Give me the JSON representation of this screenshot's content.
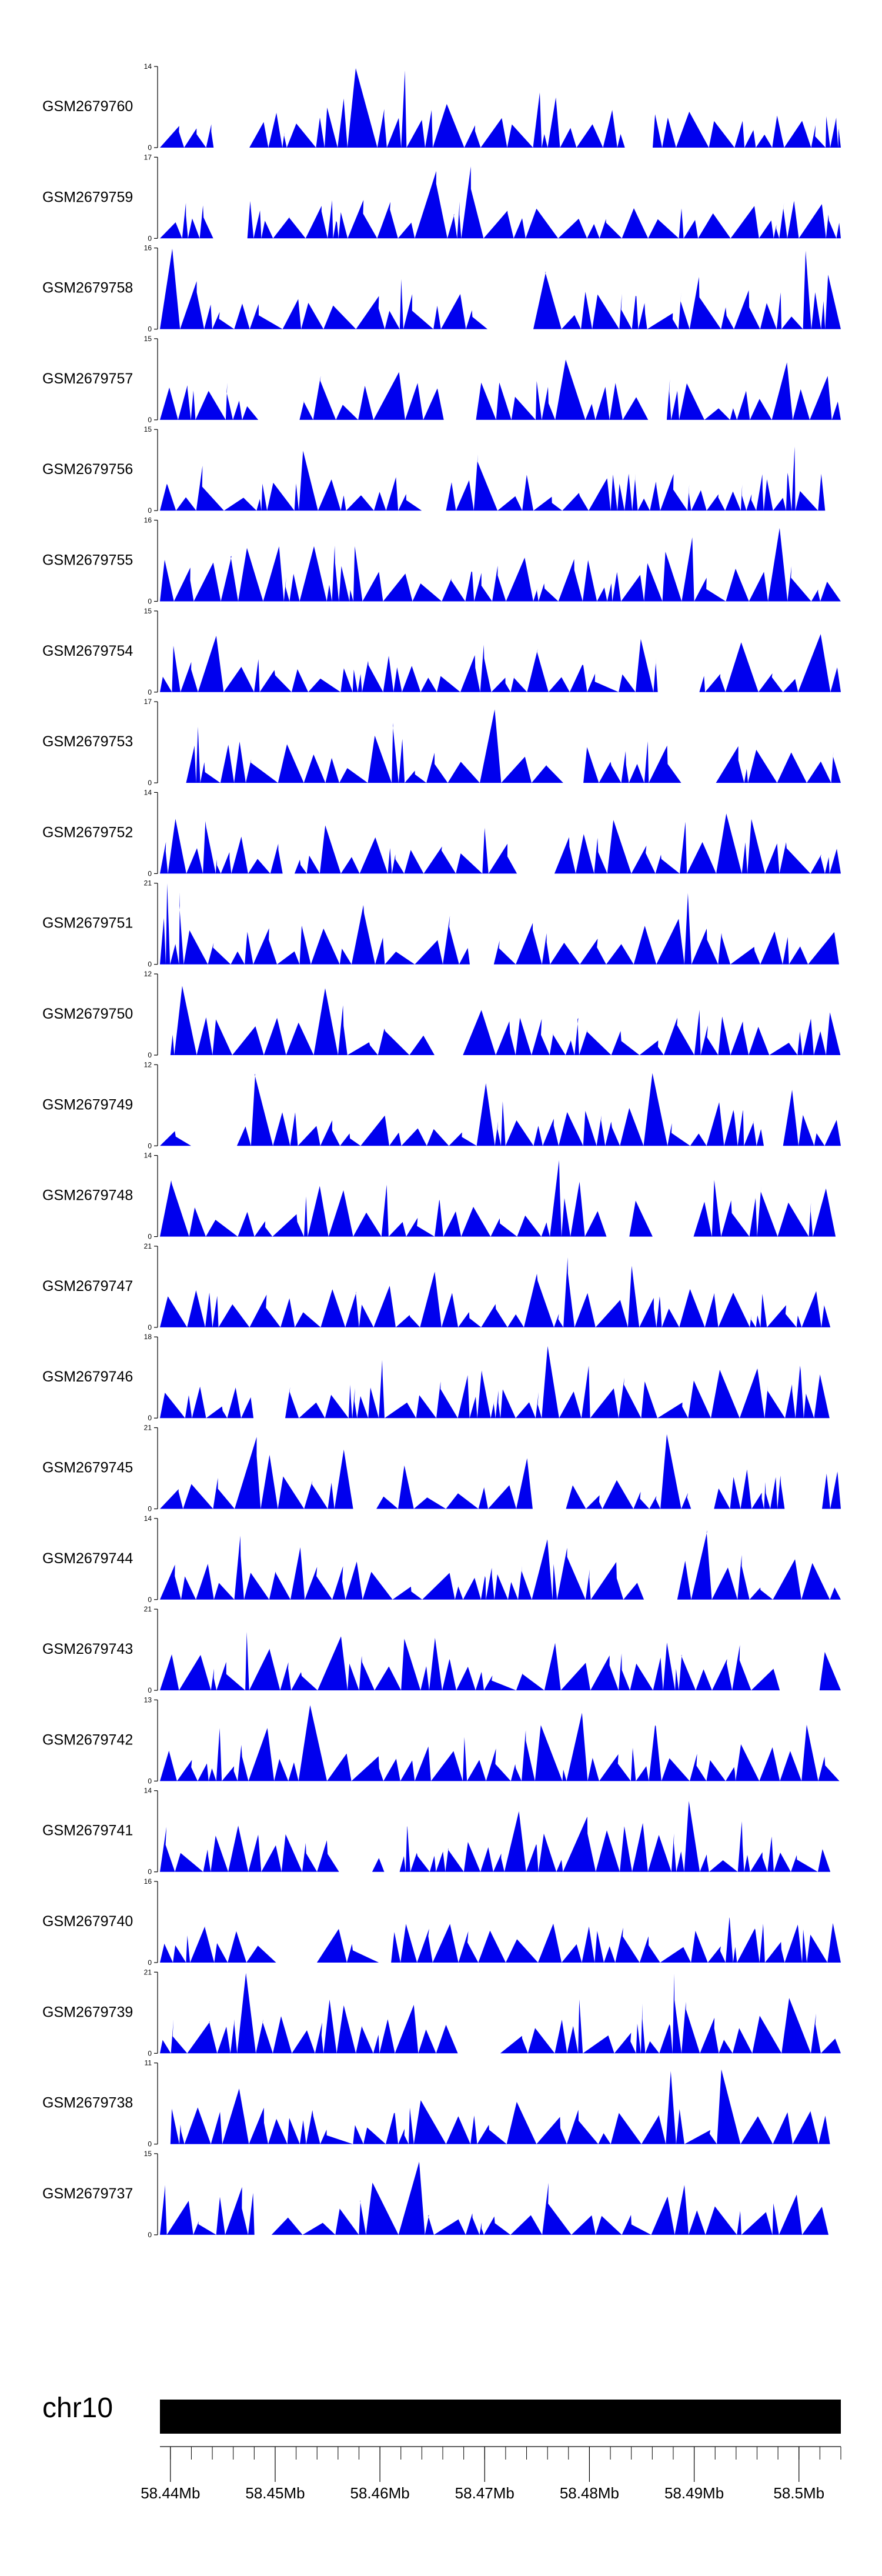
{
  "chart_data": {
    "type": "area",
    "colors": {
      "signal": "#0000ee",
      "ideogram": "#000000",
      "axis": "#000000"
    },
    "x_axis": {
      "unit": "Mb",
      "range": [
        58.439,
        58.504
      ],
      "ticks": [
        "58.44Mb",
        "58.45Mb",
        "58.46Mb",
        "58.47Mb",
        "58.48Mb",
        "58.49Mb",
        "58.5Mb"
      ],
      "tick_values": [
        58.44,
        58.45,
        58.46,
        58.47,
        58.48,
        58.49,
        58.5
      ]
    },
    "ideogram": {
      "chromosome": "chr10"
    },
    "tracks": [
      {
        "name": "GSM2679760",
        "ymax": "14",
        "ymin": "0",
        "max": 14,
        "seed": 760,
        "start": 58.439,
        "end": 58.504
      },
      {
        "name": "GSM2679759",
        "ymax": "17",
        "ymin": "0",
        "max": 17,
        "seed": 759,
        "start": 58.439,
        "end": 58.504
      },
      {
        "name": "GSM2679758",
        "ymax": "16",
        "ymin": "0",
        "max": 16,
        "seed": 758,
        "start": 58.439,
        "end": 58.504
      },
      {
        "name": "GSM2679757",
        "ymax": "15",
        "ymin": "0",
        "max": 15,
        "seed": 757,
        "start": 58.439,
        "end": 58.504
      },
      {
        "name": "GSM2679756",
        "ymax": "15",
        "ymin": "0",
        "max": 15,
        "seed": 756,
        "start": 58.439,
        "end": 58.5025
      },
      {
        "name": "GSM2679755",
        "ymax": "16",
        "ymin": "0",
        "max": 16,
        "seed": 755,
        "start": 58.439,
        "end": 58.504
      },
      {
        "name": "GSM2679754",
        "ymax": "15",
        "ymin": "0",
        "max": 15,
        "seed": 754,
        "start": 58.439,
        "end": 58.504
      },
      {
        "name": "GSM2679753",
        "ymax": "17",
        "ymin": "0",
        "max": 17,
        "seed": 753,
        "start": 58.4415,
        "end": 58.504
      },
      {
        "name": "GSM2679752",
        "ymax": "14",
        "ymin": "0",
        "max": 14,
        "seed": 752,
        "start": 58.439,
        "end": 58.504
      },
      {
        "name": "GSM2679751",
        "ymax": "21",
        "ymin": "0",
        "max": 21,
        "seed": 751,
        "start": 58.439,
        "end": 58.504
      },
      {
        "name": "GSM2679750",
        "ymax": "12",
        "ymin": "0",
        "max": 12,
        "seed": 750,
        "start": 58.44,
        "end": 58.504
      },
      {
        "name": "GSM2679749",
        "ymax": "12",
        "ymin": "0",
        "max": 12,
        "seed": 749,
        "start": 58.439,
        "end": 58.504
      },
      {
        "name": "GSM2679748",
        "ymax": "14",
        "ymin": "0",
        "max": 14,
        "seed": 748,
        "start": 58.439,
        "end": 58.5035
      },
      {
        "name": "GSM2679747",
        "ymax": "21",
        "ymin": "0",
        "max": 21,
        "seed": 747,
        "start": 58.439,
        "end": 58.503
      },
      {
        "name": "GSM2679746",
        "ymax": "18",
        "ymin": "0",
        "max": 18,
        "seed": 746,
        "start": 58.439,
        "end": 58.503
      },
      {
        "name": "GSM2679745",
        "ymax": "21",
        "ymin": "0",
        "max": 21,
        "seed": 745,
        "start": 58.439,
        "end": 58.504
      },
      {
        "name": "GSM2679744",
        "ymax": "14",
        "ymin": "0",
        "max": 14,
        "seed": 744,
        "start": 58.439,
        "end": 58.504
      },
      {
        "name": "GSM2679743",
        "ymax": "21",
        "ymin": "0",
        "max": 21,
        "seed": 743,
        "start": 58.439,
        "end": 58.504
      },
      {
        "name": "GSM2679742",
        "ymax": "13",
        "ymin": "0",
        "max": 13,
        "seed": 742,
        "start": 58.439,
        "end": 58.504
      },
      {
        "name": "GSM2679741",
        "ymax": "14",
        "ymin": "0",
        "max": 14,
        "seed": 741,
        "start": 58.439,
        "end": 58.503
      },
      {
        "name": "GSM2679740",
        "ymax": "16",
        "ymin": "0",
        "max": 16,
        "seed": 740,
        "start": 58.439,
        "end": 58.504
      },
      {
        "name": "GSM2679739",
        "ymax": "21",
        "ymin": "0",
        "max": 21,
        "seed": 739,
        "start": 58.439,
        "end": 58.504
      },
      {
        "name": "GSM2679738",
        "ymax": "11",
        "ymin": "0",
        "max": 11,
        "seed": 738,
        "start": 58.44,
        "end": 58.503
      },
      {
        "name": "GSM2679737",
        "ymax": "15",
        "ymin": "0",
        "max": 15,
        "seed": 737,
        "start": 58.439,
        "end": 58.503
      }
    ]
  }
}
